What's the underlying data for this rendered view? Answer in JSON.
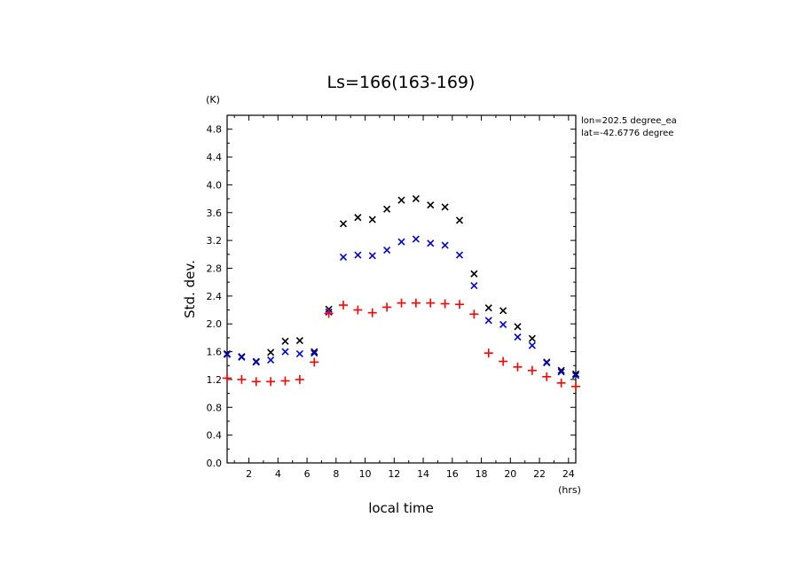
{
  "chart_data": {
    "type": "scatter",
    "title": "Ls=166(163-169)",
    "xlabel": "local time",
    "ylabel": "Std. dev.",
    "x_unit": "(hrs)",
    "y_unit": "(K)",
    "xlim": [
      0.5,
      24.5
    ],
    "ylim": [
      0.0,
      5.0
    ],
    "x_ticks": [
      2,
      4,
      6,
      8,
      10,
      12,
      14,
      16,
      18,
      20,
      22,
      24
    ],
    "y_ticks": [
      "0.0",
      "0.4",
      "0.8",
      "1.2",
      "1.6",
      "2.0",
      "2.4",
      "2.8",
      "3.2",
      "3.6",
      "4.0",
      "4.4",
      "4.8"
    ],
    "grid": false,
    "annotations": [
      "lon=202.5 degree_ea",
      "lat=-42.6776 degree"
    ],
    "x": [
      0.5,
      1.5,
      2.5,
      3.5,
      4.5,
      5.5,
      6.5,
      7.5,
      8.5,
      9.5,
      10.5,
      11.5,
      12.5,
      13.5,
      14.5,
      15.5,
      16.5,
      17.5,
      18.5,
      19.5,
      20.5,
      21.5,
      22.5,
      23.5,
      24.5
    ],
    "series": [
      {
        "marker": "x",
        "color": "#000000",
        "values": [
          1.57,
          1.53,
          1.46,
          1.59,
          1.75,
          1.76,
          1.6,
          2.21,
          3.44,
          3.53,
          3.5,
          3.65,
          3.78,
          3.8,
          3.71,
          3.68,
          3.49,
          2.72,
          2.23,
          2.19,
          1.96,
          1.79,
          1.45,
          1.33,
          1.28
        ]
      },
      {
        "marker": "x",
        "color": "#0000cc",
        "values": [
          1.56,
          1.52,
          1.45,
          1.48,
          1.6,
          1.57,
          1.58,
          2.17,
          2.96,
          2.99,
          2.98,
          3.06,
          3.18,
          3.22,
          3.16,
          3.13,
          2.99,
          2.55,
          2.05,
          1.99,
          1.81,
          1.69,
          1.44,
          1.31,
          1.26
        ]
      },
      {
        "marker": "+",
        "color": "#ff0000",
        "values": [
          1.22,
          1.2,
          1.17,
          1.17,
          1.18,
          1.2,
          1.45,
          2.15,
          2.27,
          2.2,
          2.16,
          2.24,
          2.3,
          2.3,
          2.3,
          2.29,
          2.28,
          2.14,
          1.58,
          1.46,
          1.38,
          1.33,
          1.24,
          1.15,
          1.1
        ]
      }
    ]
  }
}
